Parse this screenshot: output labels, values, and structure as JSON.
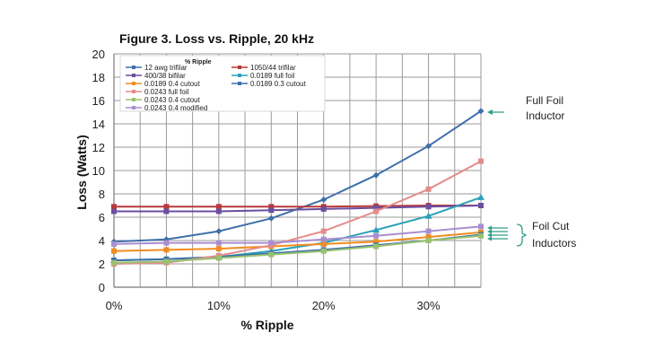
{
  "chart_data": {
    "type": "line",
    "title": "Figure 3. Loss vs. Ripple, 20 kHz",
    "xlabel": "% Ripple",
    "ylabel": "Loss (Watts)",
    "legend_header": "% Ripple",
    "xlim": [
      0,
      35
    ],
    "ylim": [
      0,
      20
    ],
    "x_ticks": [
      0,
      10,
      20,
      30
    ],
    "x_tick_labels": [
      "0%",
      "10%",
      "20%",
      "30%"
    ],
    "y_ticks": [
      0,
      2,
      4,
      6,
      8,
      10,
      12,
      14,
      16,
      18,
      20
    ],
    "grid": true,
    "legend_position": "top-left",
    "x": [
      0,
      5,
      10,
      15,
      20,
      25,
      30,
      35
    ],
    "series": [
      {
        "name": "12 awg trifilar",
        "color": "#3e6fa8",
        "marker": "diamond",
        "values": [
          3.9,
          4.1,
          4.8,
          5.9,
          7.5,
          9.6,
          12.1,
          15.1
        ]
      },
      {
        "name": "1050/44 trifilar",
        "color": "#b8393a",
        "marker": "square",
        "values": [
          6.9,
          6.9,
          6.9,
          6.9,
          6.9,
          6.95,
          7.0,
          7.0
        ]
      },
      {
        "name": "400/38 bifilar",
        "color": "#6b4f9e",
        "marker": "square",
        "values": [
          6.5,
          6.5,
          6.5,
          6.6,
          6.7,
          6.8,
          6.9,
          7.0
        ]
      },
      {
        "name": "0.0189 full foil",
        "color": "#2aa1b8",
        "marker": "triangle",
        "values": [
          2.3,
          2.4,
          2.6,
          3.1,
          3.8,
          4.9,
          6.1,
          7.7
        ]
      },
      {
        "name": "0.0189 0.4 cutout",
        "color": "#f28c1f",
        "marker": "square",
        "values": [
          3.1,
          3.2,
          3.3,
          3.5,
          3.7,
          3.9,
          4.3,
          4.7
        ]
      },
      {
        "name": "0.0189 0.3 cutout",
        "color": "#3f6ea8",
        "marker": "square",
        "values": [
          2.3,
          2.4,
          2.6,
          2.9,
          3.2,
          3.6,
          4.0,
          4.5
        ]
      },
      {
        "name": "0.0243 full foil",
        "color": "#e58b8b",
        "marker": "square",
        "values": [
          2.0,
          2.1,
          2.7,
          3.6,
          4.8,
          6.5,
          8.4,
          10.8
        ]
      },
      {
        "name": "0.0243 0.4 cutout",
        "color": "#98c270",
        "marker": "square",
        "values": [
          2.1,
          2.2,
          2.5,
          2.8,
          3.1,
          3.5,
          4.0,
          4.4
        ]
      },
      {
        "name": "0.0243 0.4 modified",
        "color": "#a98ed0",
        "marker": "square",
        "values": [
          3.7,
          3.8,
          3.8,
          3.8,
          4.1,
          4.4,
          4.8,
          5.2
        ]
      }
    ]
  },
  "annotations": {
    "full_foil": "Full Foil Inductor",
    "foil_cut": "Foil Cut Inductors"
  },
  "colors": {
    "grid": "#9a9a9a",
    "arrow": "#2e9e86"
  }
}
